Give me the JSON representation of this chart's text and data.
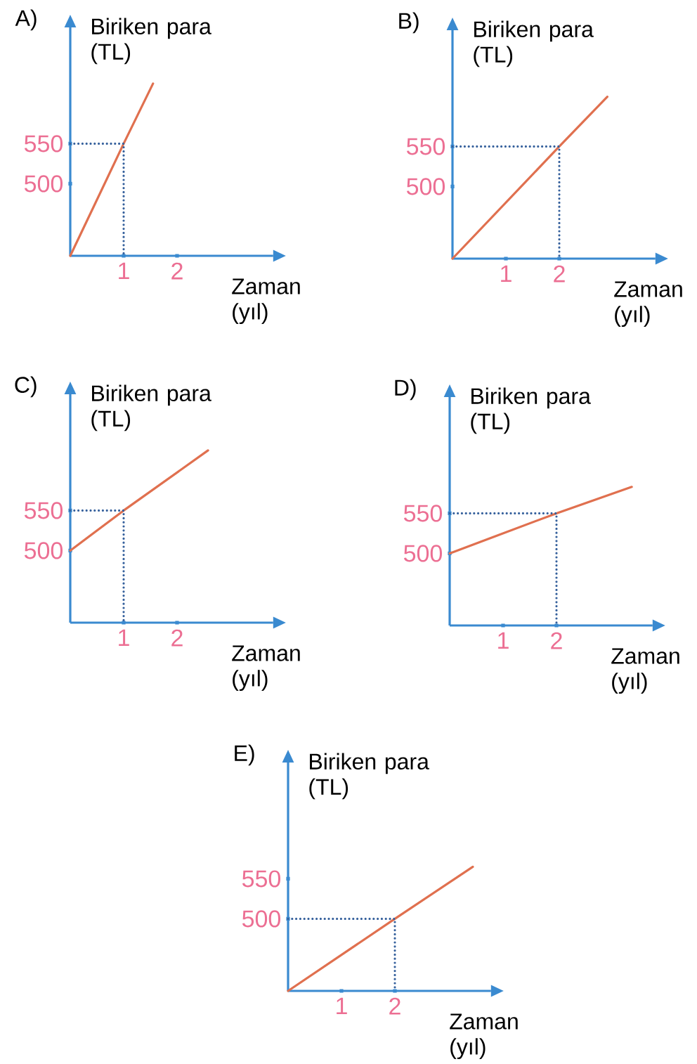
{
  "chart_data": [
    {
      "type": "line",
      "title": "A)",
      "xlabel": "Zaman (yıl)",
      "ylabel": "Biriken para (TL)",
      "xlim": [
        0,
        3.8
      ],
      "ylim": [
        410,
        695
      ],
      "xticks": [
        1,
        2
      ],
      "yticks": [
        500,
        550
      ],
      "marker": "none",
      "series": [
        {
          "color": "#e0704f",
          "line_style": "solid",
          "x": [
            0,
            1,
            1.55
          ],
          "values": [
            410,
            550,
            625
          ]
        },
        {
          "color": "#35609c",
          "line_style": "dotted",
          "x": [
            0,
            1,
            1
          ],
          "values": [
            550,
            550,
            410
          ]
        }
      ]
    },
    {
      "type": "line",
      "title": "B)",
      "xlabel": "Zaman (yıl)",
      "ylabel": "Biriken para (TL)",
      "xlim": [
        0,
        3.8
      ],
      "ylim": [
        410,
        695
      ],
      "xticks": [
        1,
        2
      ],
      "yticks": [
        500,
        550
      ],
      "marker": "none",
      "series": [
        {
          "color": "#e0704f",
          "line_style": "solid",
          "x": [
            0,
            2,
            2.9
          ],
          "values": [
            410,
            550,
            612
          ]
        },
        {
          "color": "#35609c",
          "line_style": "dotted",
          "x": [
            0,
            2,
            2
          ],
          "values": [
            550,
            550,
            410
          ]
        }
      ]
    },
    {
      "type": "line",
      "title": "C)",
      "xlabel": "Zaman (yıl)",
      "ylabel": "Biriken para (TL)",
      "xlim": [
        0,
        3.8
      ],
      "ylim": [
        410,
        695
      ],
      "xticks": [
        1,
        2
      ],
      "yticks": [
        500,
        550
      ],
      "marker": "none",
      "series": [
        {
          "color": "#e0704f",
          "line_style": "solid",
          "x": [
            0,
            1,
            2.58
          ],
          "values": [
            500,
            550,
            625
          ]
        },
        {
          "color": "#35609c",
          "line_style": "dotted",
          "x": [
            0,
            1,
            1
          ],
          "values": [
            550,
            550,
            410
          ]
        }
      ]
    },
    {
      "type": "line",
      "title": "D)",
      "xlabel": "Zaman (yıl)",
      "ylabel": "Biriken para (TL)",
      "xlim": [
        0,
        3.8
      ],
      "ylim": [
        410,
        695
      ],
      "xticks": [
        1,
        2
      ],
      "yticks": [
        500,
        550
      ],
      "marker": "none",
      "series": [
        {
          "color": "#e0704f",
          "line_style": "solid",
          "x": [
            0,
            2,
            3.41
          ],
          "values": [
            500,
            550,
            583
          ]
        },
        {
          "color": "#35609c",
          "line_style": "dotted",
          "x": [
            0,
            2,
            2
          ],
          "values": [
            550,
            550,
            410
          ]
        }
      ]
    },
    {
      "type": "line",
      "title": "E)",
      "xlabel": "Zaman (yıl)",
      "ylabel": "Biriken para (TL)",
      "xlim": [
        0,
        3.8
      ],
      "ylim": [
        410,
        695
      ],
      "xticks": [
        1,
        2
      ],
      "yticks": [
        500,
        550
      ],
      "marker": "none",
      "series": [
        {
          "color": "#e0704f",
          "line_style": "solid",
          "x": [
            0,
            2,
            3.46
          ],
          "values": [
            410,
            500,
            565
          ]
        },
        {
          "color": "#35609c",
          "line_style": "dotted",
          "x": [
            0,
            2,
            2
          ],
          "values": [
            500,
            500,
            410
          ]
        }
      ]
    }
  ]
}
